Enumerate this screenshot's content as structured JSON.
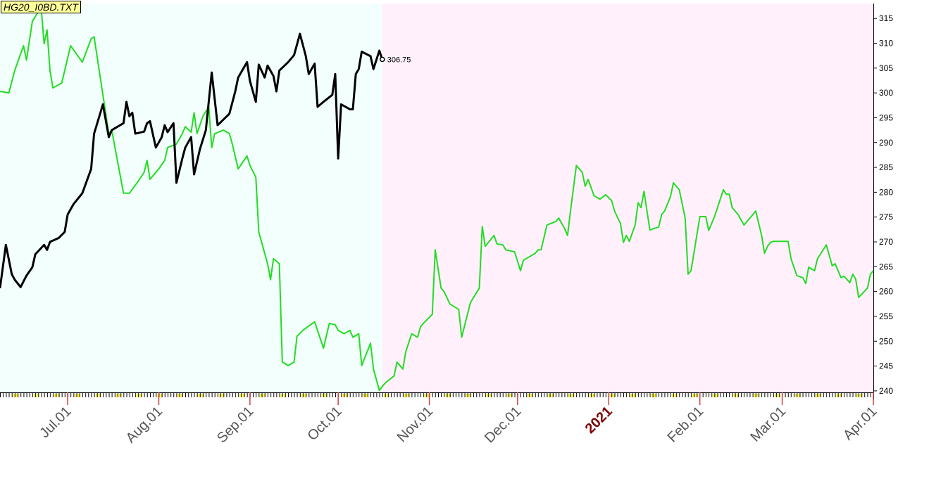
{
  "chart_data": {
    "type": "line",
    "title": "HG20_I0BD.TXT",
    "xlim": [
      "2020-06-08",
      "2021-04-01"
    ],
    "xticks": [
      {
        "value": "2020-07-01",
        "label": "Jul.01"
      },
      {
        "value": "2020-08-01",
        "label": "Aug.01"
      },
      {
        "value": "2020-09-01",
        "label": "Sep.01"
      },
      {
        "value": "2020-10-01",
        "label": "Oct.01"
      },
      {
        "value": "2020-11-01",
        "label": "Nov.01"
      },
      {
        "value": "2020-12-01",
        "label": "Dec.01"
      },
      {
        "value": "2021-01-01",
        "label": "2021",
        "color": "#800000"
      },
      {
        "value": "2021-02-01",
        "label": "Feb.01"
      },
      {
        "value": "2021-03-01",
        "label": "Mar.01"
      },
      {
        "value": "2021-04-01",
        "label": "Apr.01"
      }
    ],
    "ylim": [
      239.7,
      318
    ],
    "yticks": [
      240,
      245,
      250,
      255,
      260,
      265,
      270,
      275,
      280,
      285,
      290,
      295,
      300,
      305,
      310,
      315
    ],
    "series": [
      {
        "color": "#000000",
        "last_value_label": true,
        "x": [
          "2020-06-08",
          "2020-06-10",
          "2020-06-12",
          "2020-06-13",
          "2020-06-15",
          "2020-06-17",
          "2020-06-19",
          "2020-06-20",
          "2020-06-23",
          "2020-06-24",
          "2020-06-25",
          "2020-06-28",
          "2020-06-30",
          "2020-07-01",
          "2020-07-03",
          "2020-07-06",
          "2020-07-09",
          "2020-07-10",
          "2020-07-13",
          "2020-07-15",
          "2020-07-16",
          "2020-07-20",
          "2020-07-21",
          "2020-07-22",
          "2020-07-23",
          "2020-07-24",
          "2020-07-27",
          "2020-07-28",
          "2020-07-29",
          "2020-07-31",
          "2020-08-02",
          "2020-08-03",
          "2020-08-04",
          "2020-08-06",
          "2020-08-07",
          "2020-08-09",
          "2020-08-10",
          "2020-08-12",
          "2020-08-13",
          "2020-08-15",
          "2020-08-17",
          "2020-08-19",
          "2020-08-21",
          "2020-08-25",
          "2020-08-27",
          "2020-08-28",
          "2020-08-31",
          "2020-09-01",
          "2020-09-03",
          "2020-09-04",
          "2020-09-06",
          "2020-09-07",
          "2020-09-09",
          "2020-09-10",
          "2020-09-11",
          "2020-09-14",
          "2020-09-16",
          "2020-09-18",
          "2020-09-20",
          "2020-09-21",
          "2020-09-23",
          "2020-09-24",
          "2020-09-26",
          "2020-09-29",
          "2020-09-30",
          "2020-10-01",
          "2020-10-02",
          "2020-10-05",
          "2020-10-06",
          "2020-10-07",
          "2020-10-08",
          "2020-10-09",
          "2020-10-12",
          "2020-10-13",
          "2020-10-15",
          "2020-10-16"
        ],
        "values": [
          260.7,
          269.4,
          263.5,
          262.4,
          260.9,
          263.2,
          264.9,
          267.5,
          269.4,
          268.4,
          270,
          270.8,
          272,
          275.5,
          277.6,
          279.8,
          284.7,
          291.8,
          297.7,
          291.1,
          292.5,
          293.9,
          298.2,
          295.3,
          296,
          291.8,
          292.2,
          293.9,
          294.3,
          289,
          291.1,
          293.5,
          292.1,
          293.9,
          281.9,
          286.8,
          289,
          291.1,
          283.6,
          288.7,
          292.5,
          304.1,
          293.5,
          295.8,
          300.3,
          303.1,
          306.2,
          302.4,
          298.2,
          305.7,
          303.1,
          305.5,
          303.4,
          300.3,
          304.5,
          306.2,
          307.6,
          311.9,
          307.4,
          303.8,
          305.9,
          297.2,
          298.2,
          299.6,
          303.8,
          286.8,
          297.7,
          296.7,
          296.7,
          303.8,
          304.8,
          308.3,
          307.4,
          304.8,
          308.5,
          306.75
        ]
      },
      {
        "color": "#22dd22",
        "x": [
          "2020-06-08",
          "2020-06-11",
          "2020-06-13",
          "2020-06-16",
          "2020-06-17",
          "2020-06-19",
          "2020-06-22",
          "2020-06-23",
          "2020-06-24",
          "2020-06-25",
          "2020-06-26",
          "2020-06-29",
          "2020-07-02",
          "2020-07-06",
          "2020-07-09",
          "2020-07-10",
          "2020-07-13",
          "2020-07-15",
          "2020-07-16",
          "2020-07-20",
          "2020-07-22",
          "2020-07-25",
          "2020-07-27",
          "2020-07-28",
          "2020-07-29",
          "2020-08-01",
          "2020-08-03",
          "2020-08-04",
          "2020-08-07",
          "2020-08-09",
          "2020-08-10",
          "2020-08-12",
          "2020-08-13",
          "2020-08-14",
          "2020-08-16",
          "2020-08-18",
          "2020-08-19",
          "2020-08-20",
          "2020-08-23",
          "2020-08-25",
          "2020-08-26",
          "2020-08-28",
          "2020-08-31",
          "2020-09-01",
          "2020-09-03",
          "2020-09-04",
          "2020-09-07",
          "2020-09-08",
          "2020-09-09",
          "2020-09-11",
          "2020-09-12",
          "2020-09-14",
          "2020-09-16",
          "2020-09-17",
          "2020-09-19",
          "2020-09-23",
          "2020-09-26",
          "2020-09-28",
          "2020-09-30",
          "2020-10-01",
          "2020-10-03",
          "2020-10-05",
          "2020-10-06",
          "2020-10-08",
          "2020-10-09",
          "2020-10-12",
          "2020-10-13",
          "2020-10-15",
          "2020-10-17",
          "2020-10-20",
          "2020-10-21",
          "2020-10-23",
          "2020-10-24",
          "2020-10-26",
          "2020-10-28",
          "2020-10-29",
          "2020-10-30",
          "2020-11-02",
          "2020-11-03",
          "2020-11-05",
          "2020-11-06",
          "2020-11-08",
          "2020-11-11",
          "2020-11-12",
          "2020-11-15",
          "2020-11-18",
          "2020-11-19",
          "2020-11-20",
          "2020-11-23",
          "2020-11-24",
          "2020-11-26",
          "2020-11-27",
          "2020-11-30",
          "2020-12-02",
          "2020-12-03",
          "2020-12-05",
          "2020-12-07",
          "2020-12-08",
          "2020-12-09",
          "2020-12-11",
          "2020-12-14",
          "2020-12-15",
          "2020-12-17",
          "2020-12-18",
          "2020-12-19",
          "2020-12-21",
          "2020-12-23",
          "2020-12-24",
          "2020-12-25",
          "2020-12-27",
          "2020-12-29",
          "2020-12-31",
          "2021-01-02",
          "2021-01-03",
          "2021-01-05",
          "2021-01-06",
          "2021-01-07",
          "2021-01-08",
          "2021-01-10",
          "2021-01-11",
          "2021-01-12",
          "2021-01-13",
          "2021-01-15",
          "2021-01-18",
          "2021-01-19",
          "2021-01-20",
          "2021-01-22",
          "2021-01-23",
          "2021-01-25",
          "2021-01-27",
          "2021-01-28",
          "2021-01-29",
          "2021-02-01",
          "2021-02-03",
          "2021-02-04",
          "2021-02-06",
          "2021-02-09",
          "2021-02-10",
          "2021-02-11",
          "2021-02-12",
          "2021-02-14",
          "2021-02-16",
          "2021-02-18",
          "2021-02-20",
          "2021-02-22",
          "2021-02-23",
          "2021-02-24",
          "2021-02-25",
          "2021-02-26",
          "2021-03-03",
          "2021-03-04",
          "2021-03-06",
          "2021-03-08",
          "2021-03-09",
          "2021-03-10",
          "2021-03-12",
          "2021-03-13",
          "2021-03-16",
          "2021-03-18",
          "2021-03-19",
          "2021-03-21",
          "2021-03-22",
          "2021-03-24",
          "2021-03-25",
          "2021-03-26",
          "2021-03-27",
          "2021-03-30",
          "2021-03-31",
          "2021-04-01"
        ],
        "values": [
          300.3,
          300,
          304.5,
          309.5,
          306.6,
          314.4,
          317.3,
          309.9,
          312.7,
          304.5,
          301,
          302,
          309.5,
          306.2,
          310.9,
          311.3,
          299.6,
          291.8,
          292.5,
          279.8,
          279.8,
          282.2,
          284,
          286.4,
          282.6,
          284.7,
          286.4,
          289,
          289.7,
          291.8,
          293.2,
          292.1,
          296,
          291.8,
          295.3,
          297.2,
          289,
          291.8,
          292.5,
          291.8,
          289.7,
          284.7,
          287.3,
          285.4,
          283,
          272,
          265.6,
          262.4,
          266.6,
          265.6,
          245.8,
          245.1,
          245.8,
          251,
          252.2,
          253.9,
          248.6,
          253.6,
          253.3,
          252.2,
          251.5,
          252.2,
          250.8,
          251.5,
          245.1,
          249.6,
          244.4,
          240.1,
          241.6,
          243,
          245.8,
          244.4,
          247.9,
          251.5,
          250.8,
          252.9,
          253.6,
          255.4,
          268.4,
          260.7,
          260,
          257.5,
          256.4,
          250.8,
          257.8,
          260.7,
          273.1,
          269.1,
          271.3,
          269.6,
          269.4,
          268.4,
          268,
          264.2,
          266.3,
          267,
          267.7,
          268.4,
          268.4,
          273.4,
          274.1,
          274.8,
          272.7,
          271.3,
          276.2,
          285.4,
          284,
          281.2,
          282.6,
          279.3,
          278.6,
          279.5,
          278.3,
          276.2,
          273.7,
          269.9,
          271.3,
          270.1,
          273.4,
          277.9,
          276.9,
          280.2,
          272.4,
          273,
          275.5,
          276.2,
          279.1,
          281.9,
          280.5,
          274.8,
          263.5,
          264.2,
          275.1,
          275.1,
          272.3,
          275.1,
          280.5,
          279.6,
          279.6,
          276.9,
          275.5,
          273.4,
          274.8,
          276.2,
          271.3,
          267.7,
          269.1,
          269.9,
          270.1,
          270.1,
          266.6,
          263.2,
          262.8,
          261.6,
          264.9,
          264.2,
          266.6,
          269.4,
          265.2,
          265.6,
          262.8,
          263.1,
          261.8,
          263.5,
          262.5,
          258.8,
          260.7,
          263.5,
          264.2
        ]
      }
    ]
  }
}
